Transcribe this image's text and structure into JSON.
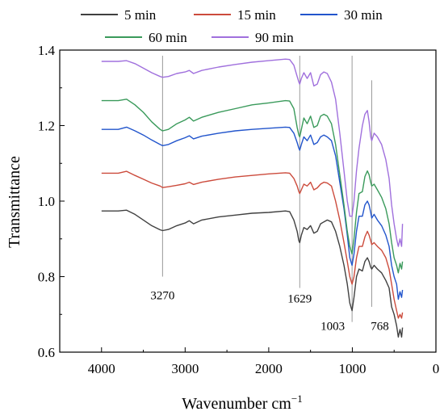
{
  "chart_data": {
    "type": "line",
    "xlabel": "Wavenumber cm",
    "xlabel_sup": "−1",
    "ylabel": "Transmittance",
    "xlim": [
      4500,
      0
    ],
    "ylim": [
      0.6,
      1.4
    ],
    "xticks": [
      4000,
      3000,
      2000,
      1000,
      0
    ],
    "yticks": [
      0.6,
      0.8,
      1.0,
      1.2,
      1.4
    ],
    "xtick_labels": [
      "4000",
      "3000",
      "2000",
      "1000",
      "0"
    ],
    "ytick_labels": [
      "0.6",
      "0.8",
      "1.0",
      "1.2",
      "1.4"
    ],
    "legend": {
      "placement": "top",
      "columns": 3
    },
    "series": [
      {
        "name": "5 min",
        "color": "#404040",
        "points": [
          [
            4000,
            0.974
          ],
          [
            3800,
            0.974
          ],
          [
            3700,
            0.976
          ],
          [
            3600,
            0.965
          ],
          [
            3500,
            0.95
          ],
          [
            3400,
            0.935
          ],
          [
            3300,
            0.924
          ],
          [
            3270,
            0.922
          ],
          [
            3200,
            0.925
          ],
          [
            3100,
            0.935
          ],
          [
            3000,
            0.942
          ],
          [
            2950,
            0.948
          ],
          [
            2900,
            0.94
          ],
          [
            2800,
            0.95
          ],
          [
            2600,
            0.958
          ],
          [
            2400,
            0.963
          ],
          [
            2200,
            0.968
          ],
          [
            2000,
            0.97
          ],
          [
            1800,
            0.974
          ],
          [
            1750,
            0.972
          ],
          [
            1700,
            0.95
          ],
          [
            1660,
            0.92
          ],
          [
            1640,
            0.895
          ],
          [
            1629,
            0.89
          ],
          [
            1610,
            0.91
          ],
          [
            1580,
            0.93
          ],
          [
            1540,
            0.925
          ],
          [
            1500,
            0.935
          ],
          [
            1460,
            0.915
          ],
          [
            1420,
            0.92
          ],
          [
            1380,
            0.94
          ],
          [
            1340,
            0.945
          ],
          [
            1300,
            0.95
          ],
          [
            1250,
            0.945
          ],
          [
            1200,
            0.92
          ],
          [
            1150,
            0.88
          ],
          [
            1100,
            0.83
          ],
          [
            1060,
            0.78
          ],
          [
            1030,
            0.73
          ],
          [
            1003,
            0.71
          ],
          [
            980,
            0.745
          ],
          [
            950,
            0.8
          ],
          [
            920,
            0.82
          ],
          [
            880,
            0.815
          ],
          [
            850,
            0.84
          ],
          [
            820,
            0.85
          ],
          [
            800,
            0.84
          ],
          [
            780,
            0.825
          ],
          [
            768,
            0.82
          ],
          [
            740,
            0.83
          ],
          [
            700,
            0.82
          ],
          [
            650,
            0.81
          ],
          [
            600,
            0.79
          ],
          [
            560,
            0.77
          ],
          [
            530,
            0.72
          ],
          [
            500,
            0.7
          ],
          [
            470,
            0.67
          ],
          [
            450,
            0.64
          ],
          [
            430,
            0.66
          ],
          [
            410,
            0.64
          ],
          [
            400,
            0.665
          ]
        ]
      },
      {
        "name": "15 min",
        "color": "#cc4b3c",
        "points": [
          [
            4000,
            1.074
          ],
          [
            3800,
            1.074
          ],
          [
            3700,
            1.079
          ],
          [
            3600,
            1.068
          ],
          [
            3500,
            1.058
          ],
          [
            3400,
            1.048
          ],
          [
            3300,
            1.04
          ],
          [
            3270,
            1.036
          ],
          [
            3200,
            1.038
          ],
          [
            3100,
            1.042
          ],
          [
            3000,
            1.046
          ],
          [
            2950,
            1.05
          ],
          [
            2900,
            1.044
          ],
          [
            2800,
            1.05
          ],
          [
            2600,
            1.058
          ],
          [
            2400,
            1.064
          ],
          [
            2200,
            1.068
          ],
          [
            2000,
            1.072
          ],
          [
            1800,
            1.075
          ],
          [
            1750,
            1.074
          ],
          [
            1700,
            1.06
          ],
          [
            1660,
            1.04
          ],
          [
            1640,
            1.025
          ],
          [
            1629,
            1.02
          ],
          [
            1610,
            1.03
          ],
          [
            1580,
            1.045
          ],
          [
            1540,
            1.04
          ],
          [
            1500,
            1.05
          ],
          [
            1460,
            1.03
          ],
          [
            1420,
            1.035
          ],
          [
            1380,
            1.045
          ],
          [
            1340,
            1.05
          ],
          [
            1300,
            1.048
          ],
          [
            1250,
            1.04
          ],
          [
            1200,
            1.0
          ],
          [
            1150,
            0.95
          ],
          [
            1100,
            0.89
          ],
          [
            1060,
            0.84
          ],
          [
            1030,
            0.8
          ],
          [
            1003,
            0.78
          ],
          [
            980,
            0.8
          ],
          [
            950,
            0.85
          ],
          [
            920,
            0.88
          ],
          [
            880,
            0.88
          ],
          [
            850,
            0.905
          ],
          [
            820,
            0.92
          ],
          [
            800,
            0.91
          ],
          [
            780,
            0.895
          ],
          [
            768,
            0.885
          ],
          [
            740,
            0.89
          ],
          [
            700,
            0.88
          ],
          [
            650,
            0.87
          ],
          [
            600,
            0.85
          ],
          [
            560,
            0.82
          ],
          [
            530,
            0.78
          ],
          [
            500,
            0.74
          ],
          [
            470,
            0.71
          ],
          [
            450,
            0.69
          ],
          [
            430,
            0.7
          ],
          [
            410,
            0.69
          ],
          [
            400,
            0.705
          ]
        ]
      },
      {
        "name": "30 min",
        "color": "#2255cc",
        "points": [
          [
            4000,
            1.19
          ],
          [
            3800,
            1.19
          ],
          [
            3700,
            1.196
          ],
          [
            3600,
            1.186
          ],
          [
            3500,
            1.175
          ],
          [
            3400,
            1.162
          ],
          [
            3300,
            1.15
          ],
          [
            3270,
            1.147
          ],
          [
            3200,
            1.15
          ],
          [
            3100,
            1.16
          ],
          [
            3000,
            1.168
          ],
          [
            2950,
            1.173
          ],
          [
            2900,
            1.165
          ],
          [
            2800,
            1.172
          ],
          [
            2600,
            1.18
          ],
          [
            2400,
            1.186
          ],
          [
            2200,
            1.19
          ],
          [
            2000,
            1.193
          ],
          [
            1800,
            1.196
          ],
          [
            1750,
            1.195
          ],
          [
            1700,
            1.18
          ],
          [
            1660,
            1.155
          ],
          [
            1640,
            1.14
          ],
          [
            1629,
            1.135
          ],
          [
            1610,
            1.15
          ],
          [
            1580,
            1.17
          ],
          [
            1540,
            1.16
          ],
          [
            1500,
            1.175
          ],
          [
            1460,
            1.15
          ],
          [
            1420,
            1.155
          ],
          [
            1380,
            1.17
          ],
          [
            1340,
            1.175
          ],
          [
            1300,
            1.17
          ],
          [
            1250,
            1.16
          ],
          [
            1200,
            1.12
          ],
          [
            1150,
            1.05
          ],
          [
            1100,
            0.98
          ],
          [
            1060,
            0.91
          ],
          [
            1030,
            0.85
          ],
          [
            1003,
            0.83
          ],
          [
            980,
            0.86
          ],
          [
            950,
            0.92
          ],
          [
            920,
            0.96
          ],
          [
            880,
            0.96
          ],
          [
            850,
            0.99
          ],
          [
            820,
            1.0
          ],
          [
            800,
            0.99
          ],
          [
            780,
            0.97
          ],
          [
            768,
            0.955
          ],
          [
            740,
            0.965
          ],
          [
            700,
            0.95
          ],
          [
            650,
            0.935
          ],
          [
            600,
            0.91
          ],
          [
            560,
            0.88
          ],
          [
            530,
            0.83
          ],
          [
            500,
            0.8
          ],
          [
            470,
            0.78
          ],
          [
            450,
            0.74
          ],
          [
            430,
            0.76
          ],
          [
            410,
            0.745
          ],
          [
            400,
            0.765
          ]
        ]
      },
      {
        "name": "60 min",
        "color": "#3a9a5b",
        "points": [
          [
            4000,
            1.266
          ],
          [
            3800,
            1.266
          ],
          [
            3700,
            1.27
          ],
          [
            3600,
            1.255
          ],
          [
            3500,
            1.235
          ],
          [
            3400,
            1.21
          ],
          [
            3300,
            1.19
          ],
          [
            3270,
            1.186
          ],
          [
            3200,
            1.19
          ],
          [
            3100,
            1.205
          ],
          [
            3000,
            1.215
          ],
          [
            2950,
            1.222
          ],
          [
            2900,
            1.212
          ],
          [
            2800,
            1.222
          ],
          [
            2600,
            1.235
          ],
          [
            2400,
            1.245
          ],
          [
            2200,
            1.255
          ],
          [
            2000,
            1.26
          ],
          [
            1800,
            1.266
          ],
          [
            1750,
            1.265
          ],
          [
            1700,
            1.245
          ],
          [
            1660,
            1.195
          ],
          [
            1640,
            1.175
          ],
          [
            1629,
            1.17
          ],
          [
            1610,
            1.19
          ],
          [
            1580,
            1.22
          ],
          [
            1540,
            1.205
          ],
          [
            1500,
            1.225
          ],
          [
            1460,
            1.195
          ],
          [
            1420,
            1.2
          ],
          [
            1380,
            1.225
          ],
          [
            1340,
            1.23
          ],
          [
            1300,
            1.225
          ],
          [
            1250,
            1.205
          ],
          [
            1200,
            1.15
          ],
          [
            1150,
            1.07
          ],
          [
            1100,
            0.99
          ],
          [
            1060,
            0.92
          ],
          [
            1030,
            0.88
          ],
          [
            1003,
            0.86
          ],
          [
            980,
            0.9
          ],
          [
            950,
            0.97
          ],
          [
            920,
            1.02
          ],
          [
            880,
            1.025
          ],
          [
            850,
            1.065
          ],
          [
            820,
            1.08
          ],
          [
            800,
            1.07
          ],
          [
            780,
            1.05
          ],
          [
            768,
            1.04
          ],
          [
            740,
            1.045
          ],
          [
            700,
            1.03
          ],
          [
            650,
            1.01
          ],
          [
            600,
            0.98
          ],
          [
            560,
            0.94
          ],
          [
            530,
            0.89
          ],
          [
            500,
            0.85
          ],
          [
            470,
            0.83
          ],
          [
            450,
            0.81
          ],
          [
            430,
            0.835
          ],
          [
            410,
            0.82
          ],
          [
            400,
            0.84
          ]
        ]
      },
      {
        "name": "90 min",
        "color": "#a070dd",
        "points": [
          [
            4000,
            1.37
          ],
          [
            3800,
            1.37
          ],
          [
            3700,
            1.372
          ],
          [
            3600,
            1.364
          ],
          [
            3500,
            1.352
          ],
          [
            3400,
            1.34
          ],
          [
            3300,
            1.33
          ],
          [
            3270,
            1.328
          ],
          [
            3200,
            1.33
          ],
          [
            3100,
            1.338
          ],
          [
            3000,
            1.342
          ],
          [
            2950,
            1.346
          ],
          [
            2900,
            1.338
          ],
          [
            2800,
            1.346
          ],
          [
            2600,
            1.355
          ],
          [
            2400,
            1.362
          ],
          [
            2200,
            1.368
          ],
          [
            2000,
            1.372
          ],
          [
            1800,
            1.376
          ],
          [
            1750,
            1.375
          ],
          [
            1700,
            1.36
          ],
          [
            1660,
            1.33
          ],
          [
            1640,
            1.315
          ],
          [
            1629,
            1.31
          ],
          [
            1610,
            1.325
          ],
          [
            1580,
            1.34
          ],
          [
            1540,
            1.325
          ],
          [
            1500,
            1.34
          ],
          [
            1460,
            1.305
          ],
          [
            1420,
            1.31
          ],
          [
            1380,
            1.335
          ],
          [
            1340,
            1.342
          ],
          [
            1300,
            1.338
          ],
          [
            1250,
            1.315
          ],
          [
            1200,
            1.27
          ],
          [
            1150,
            1.18
          ],
          [
            1100,
            1.08
          ],
          [
            1060,
            1.0
          ],
          [
            1030,
            0.96
          ],
          [
            1003,
            0.96
          ],
          [
            980,
            1.0
          ],
          [
            950,
            1.08
          ],
          [
            920,
            1.14
          ],
          [
            880,
            1.2
          ],
          [
            850,
            1.23
          ],
          [
            820,
            1.24
          ],
          [
            800,
            1.21
          ],
          [
            780,
            1.17
          ],
          [
            768,
            1.16
          ],
          [
            740,
            1.18
          ],
          [
            700,
            1.17
          ],
          [
            650,
            1.15
          ],
          [
            600,
            1.11
          ],
          [
            560,
            1.06
          ],
          [
            530,
            0.99
          ],
          [
            500,
            0.94
          ],
          [
            470,
            0.9
          ],
          [
            450,
            0.88
          ],
          [
            430,
            0.9
          ],
          [
            410,
            0.88
          ],
          [
            400,
            0.94
          ]
        ]
      }
    ],
    "annotations": [
      {
        "label": "3270",
        "x": 3270,
        "line_from": 0.8,
        "line_to": 1.385
      },
      {
        "label": "1629",
        "x": 1629,
        "line_from": 0.77,
        "line_to": 1.385
      },
      {
        "label": "1003",
        "x": 1003,
        "line_from": 0.68,
        "line_to": 1.385
      },
      {
        "label": "768",
        "x": 768,
        "line_from": 0.72,
        "line_to": 1.32
      }
    ]
  }
}
